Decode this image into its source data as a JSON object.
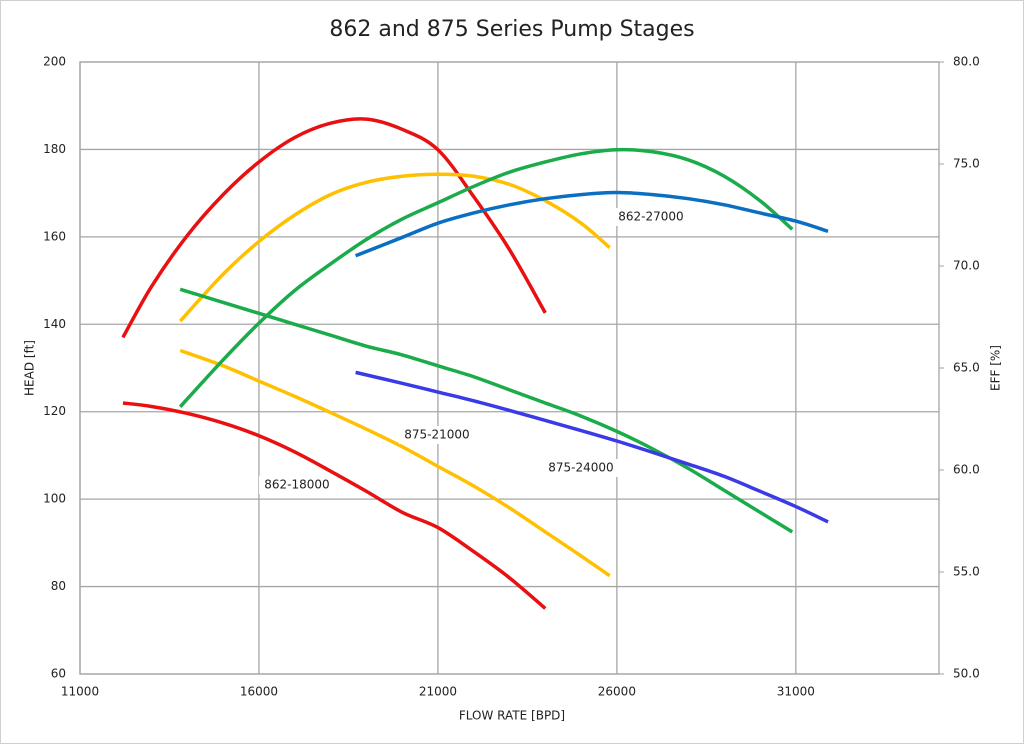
{
  "chart_data": {
    "type": "line",
    "title": "862 and 875 Series Pump Stages",
    "x_label": "FLOW RATE [BPD]",
    "y_label": "HEAD [ft]",
    "y2_label": "EFF [%]",
    "xlim": [
      11000,
      35000
    ],
    "xticks": [
      11000,
      16000,
      21000,
      26000,
      31000
    ],
    "ylim": [
      60,
      200
    ],
    "yticks": [
      60,
      80,
      100,
      120,
      140,
      160,
      180,
      200
    ],
    "y2lim": [
      50,
      80
    ],
    "y2ticks": [
      {
        "value": 50,
        "label": "50.0"
      },
      {
        "value": 55,
        "label": "55.0"
      },
      {
        "value": 60,
        "label": "60.0"
      },
      {
        "value": 65,
        "label": "65.0"
      },
      {
        "value": 70,
        "label": "70.0"
      },
      {
        "value": 75,
        "label": "75.0"
      },
      {
        "value": 80,
        "label": "80.0"
      }
    ],
    "grid": true,
    "series": [
      {
        "name": "862-18000",
        "color": "#e81010",
        "x": [
          12200,
          13000,
          14000,
          15000,
          16000,
          17000,
          18000,
          19000,
          20000,
          21000,
          22000,
          23000,
          24000
        ],
        "values": [
          122,
          121.2,
          119.6,
          117.4,
          114.5,
          110.8,
          106.4,
          101.8,
          97,
          93.5,
          88,
          82,
          75
        ]
      },
      {
        "color": "#e81010",
        "axis": "y2",
        "x": [
          12200,
          13000,
          14000,
          15000,
          16000,
          17000,
          18000,
          19000,
          20000,
          21000,
          22000,
          23000,
          24000
        ],
        "values": [
          66.5,
          69,
          71.5,
          73.5,
          75.1,
          76.3,
          77,
          77.2,
          76.7,
          75.7,
          73.4,
          70.8,
          67.7
        ]
      },
      {
        "name": "875-21000",
        "color": "#ffc000",
        "x": [
          13800,
          15000,
          16000,
          17000,
          18000,
          19000,
          20000,
          21000,
          22000,
          23000,
          24000,
          25000,
          25800
        ],
        "values": [
          134,
          130.5,
          127,
          123.5,
          119.8,
          116,
          112,
          107.5,
          103,
          98,
          92.5,
          87,
          82.5
        ]
      },
      {
        "color": "#ffc000",
        "axis": "y2",
        "x": [
          13800,
          15000,
          16000,
          17000,
          18000,
          19000,
          20000,
          21000,
          22000,
          23000,
          24000,
          25000,
          25800
        ],
        "values": [
          67.3,
          69.6,
          71.2,
          72.5,
          73.5,
          74.1,
          74.4,
          74.5,
          74.4,
          74,
          73.2,
          72.1,
          70.9
        ]
      },
      {
        "name": "875-24000",
        "color": "#1aab4a",
        "x": [
          13800,
          15000,
          16000,
          17000,
          18000,
          19000,
          20000,
          21000,
          22000,
          23000,
          24000,
          25000,
          26000,
          27000,
          28000,
          29000,
          30000,
          30900
        ],
        "values": [
          148,
          145,
          142.5,
          140,
          137.5,
          135,
          133,
          130.5,
          128,
          125,
          122,
          119,
          115.5,
          111.5,
          107,
          102,
          97,
          92.5
        ]
      },
      {
        "color": "#1aab4a",
        "axis": "y2",
        "x": [
          13800,
          15000,
          16000,
          17000,
          18000,
          19000,
          20000,
          21000,
          22000,
          23000,
          24000,
          25000,
          26000,
          27000,
          28000,
          29000,
          30000,
          30900
        ],
        "values": [
          63.1,
          65.4,
          67.2,
          68.8,
          70.1,
          71.3,
          72.3,
          73.1,
          73.9,
          74.6,
          75.1,
          75.5,
          75.7,
          75.6,
          75.2,
          74.4,
          73.2,
          71.8
        ]
      },
      {
        "color": "#3a3ae6",
        "x": [
          18700,
          20000,
          21000,
          22000,
          23000,
          24000,
          25000,
          26000,
          27000,
          28000,
          29000,
          30000,
          31000,
          31900
        ],
        "values": [
          129,
          126.5,
          124.5,
          122.5,
          120.3,
          118,
          115.7,
          113.3,
          110.7,
          108,
          105.2,
          101.8,
          98.3,
          94.8
        ]
      },
      {
        "name": "862-27000",
        "color": "#0a6fc2",
        "axis": "y2",
        "x": [
          18700,
          20000,
          21000,
          22000,
          23000,
          24000,
          25000,
          26000,
          27000,
          28000,
          29000,
          30000,
          31000,
          31900
        ],
        "values": [
          70.5,
          71.4,
          72.1,
          72.6,
          73,
          73.3,
          73.5,
          73.6,
          73.5,
          73.3,
          73,
          72.6,
          72.2,
          71.7
        ]
      }
    ]
  }
}
